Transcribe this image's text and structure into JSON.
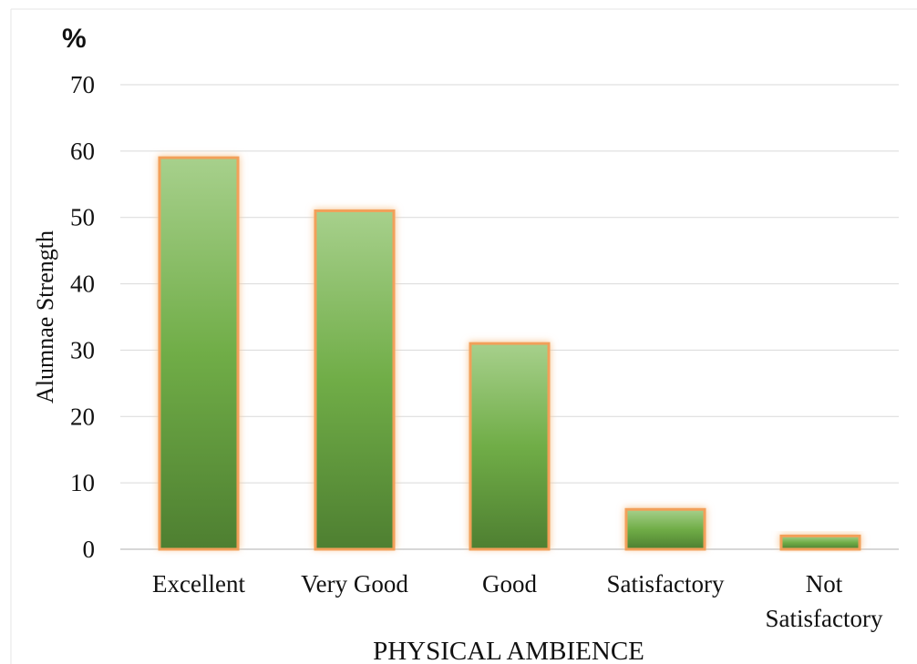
{
  "chart_data": {
    "type": "bar",
    "unit_label": "%",
    "ylabel": "Alumnae Strength",
    "xlabel": "PHYSICAL AMBIENCE",
    "categories": [
      [
        "Excellent"
      ],
      [
        "Very Good"
      ],
      [
        "Good"
      ],
      [
        "Satisfactory"
      ],
      [
        "Not",
        "Satisfactory"
      ]
    ],
    "values": [
      59,
      51,
      31,
      6,
      2
    ],
    "ylim": [
      0,
      70
    ],
    "yticks": [
      0,
      10,
      20,
      30,
      40,
      50,
      60,
      70
    ],
    "grid": true,
    "legend": "none",
    "colors": {
      "bar_top": "#a7d08c",
      "bar_mid": "#70ad47",
      "bar_bottom": "#4e7f31",
      "bar_outline": "#f2a05a",
      "bar_glow": "#f8c999",
      "gridline": "#d9d9d9"
    }
  }
}
